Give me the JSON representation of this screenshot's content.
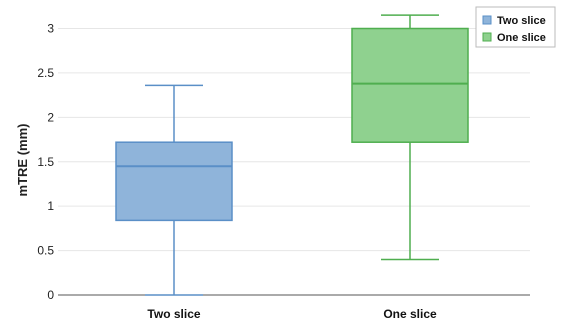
{
  "chart_data": {
    "type": "box",
    "ylabel": "mTRE (mm)",
    "xlabel": "",
    "ylim": [
      0,
      3.2
    ],
    "yticks": [
      "0",
      "0.5",
      "1",
      "1.5",
      "2",
      "2.5",
      "3"
    ],
    "ytick_values": [
      0,
      0.5,
      1,
      1.5,
      2,
      2.5,
      3
    ],
    "grid": true,
    "legend_position": "top-right",
    "categories": [
      "Two slice",
      "One slice"
    ],
    "series": [
      {
        "name": "Two slice",
        "min": 0.0,
        "q1": 0.84,
        "median": 1.45,
        "q3": 1.72,
        "max": 2.36,
        "fill": "#8fb4da",
        "stroke": "#5a8fc7"
      },
      {
        "name": "One slice",
        "min": 0.4,
        "q1": 1.72,
        "median": 2.38,
        "q3": 3.0,
        "max": 3.15,
        "fill": "#8fd18f",
        "stroke": "#4fae4f"
      }
    ]
  }
}
